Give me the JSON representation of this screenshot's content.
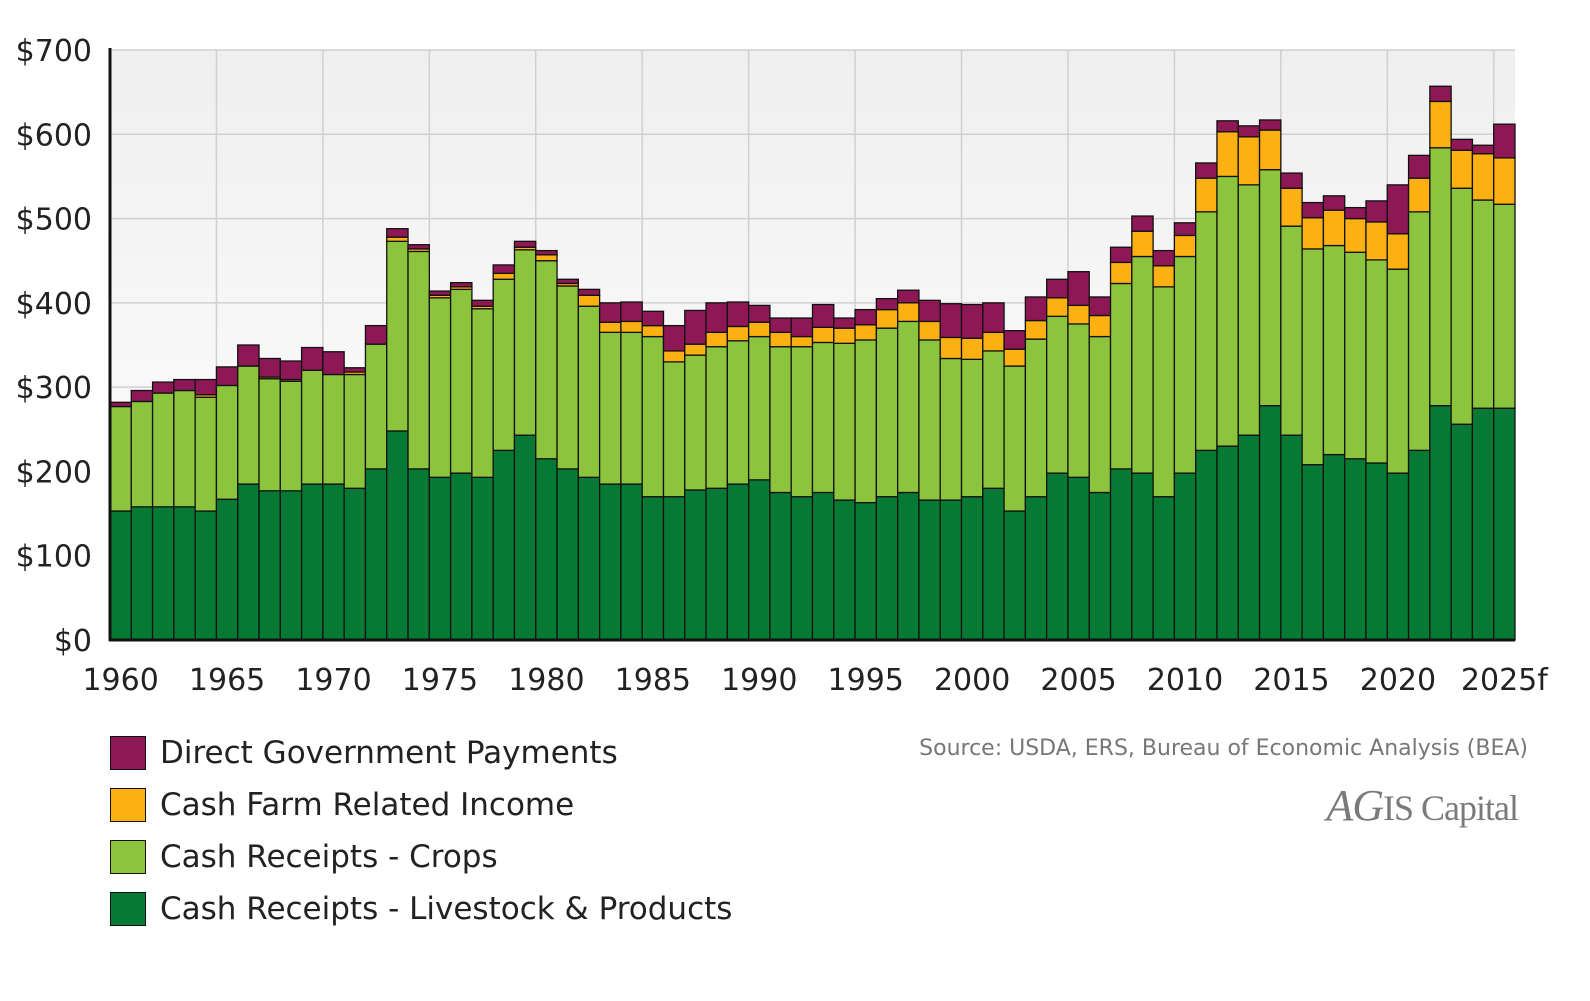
{
  "chart_data": {
    "type": "bar",
    "stacked": true,
    "x_start": 1960,
    "x_tick_labels": [
      "1960",
      "1965",
      "1970",
      "1975",
      "1980",
      "1985",
      "1990",
      "1995",
      "2000",
      "2005",
      "2010",
      "2015",
      "2020",
      "2025f"
    ],
    "y_tick_labels": [
      "$0",
      "$100",
      "$200",
      "$300",
      "$400",
      "$500",
      "$600",
      "$700"
    ],
    "ylim": [
      0,
      700
    ],
    "grid": true,
    "legend_position": "bottom-left",
    "series": [
      {
        "name": "Cash Receipts - Livestock & Products",
        "color": "#067a34",
        "values": [
          153,
          158,
          158,
          158,
          153,
          167,
          185,
          177,
          177,
          185,
          185,
          180,
          203,
          248,
          203,
          193,
          198,
          193,
          225,
          243,
          215,
          203,
          193,
          185,
          185,
          170,
          170,
          178,
          180,
          185,
          190,
          175,
          170,
          175,
          166,
          163,
          170,
          175,
          166,
          166,
          170,
          180,
          153,
          170,
          198,
          193,
          175,
          203,
          198,
          170,
          198,
          225,
          230,
          243,
          278,
          243,
          208,
          220,
          215,
          210,
          198,
          225,
          278,
          256,
          275,
          275
        ],
        "color_name": "dark green"
      },
      {
        "name": "Cash Receipts - Crops",
        "color": "#8cc43e",
        "values": [
          124,
          125,
          135,
          138,
          135,
          135,
          140,
          133,
          130,
          135,
          130,
          135,
          148,
          225,
          258,
          213,
          218,
          200,
          203,
          220,
          235,
          217,
          203,
          180,
          180,
          190,
          160,
          160,
          168,
          170,
          170,
          173,
          178,
          178,
          186,
          193,
          200,
          203,
          190,
          168,
          163,
          163,
          172,
          187,
          186,
          182,
          185,
          220,
          257,
          249,
          257,
          283,
          320,
          297,
          280,
          248,
          256,
          248,
          245,
          241,
          242,
          283,
          306,
          280,
          247,
          242
        ]
      },
      {
        "name": "Cash Farm Related Income",
        "color": "#fdb012",
        "values": [
          0,
          0,
          0,
          0,
          3,
          0,
          0,
          2,
          2,
          0,
          0,
          3,
          0,
          5,
          3,
          3,
          3,
          3,
          7,
          3,
          7,
          3,
          13,
          12,
          13,
          13,
          13,
          13,
          17,
          17,
          17,
          17,
          12,
          18,
          18,
          18,
          22,
          22,
          22,
          25,
          25,
          22,
          20,
          22,
          22,
          22,
          25,
          25,
          30,
          25,
          25,
          40,
          53,
          57,
          47,
          45,
          37,
          42,
          40,
          45,
          42,
          40,
          55,
          45,
          55,
          55
        ]
      },
      {
        "name": "Direct Government Payments",
        "color": "#8d1855",
        "values": [
          5,
          13,
          13,
          13,
          18,
          22,
          25,
          22,
          22,
          27,
          27,
          5,
          22,
          10,
          5,
          5,
          5,
          7,
          10,
          7,
          5,
          5,
          7,
          23,
          23,
          17,
          30,
          40,
          35,
          29,
          20,
          17,
          22,
          27,
          12,
          18,
          13,
          15,
          25,
          40,
          40,
          35,
          22,
          28,
          22,
          40,
          22,
          18,
          18,
          18,
          15,
          18,
          13,
          13,
          12,
          18,
          18,
          17,
          13,
          25,
          58,
          27,
          18,
          13,
          10,
          40
        ]
      }
    ]
  },
  "source_text": "Source: USDA, ERS, Bureau of Economic Analysis (BEA)",
  "logo": {
    "part1": "A",
    "part2": "G",
    "part3": "IS",
    "part4": "Capital"
  },
  "colors": {
    "grid": "#d0d0d0",
    "axis": "#111111",
    "plot_top": "#f2f2f2"
  }
}
